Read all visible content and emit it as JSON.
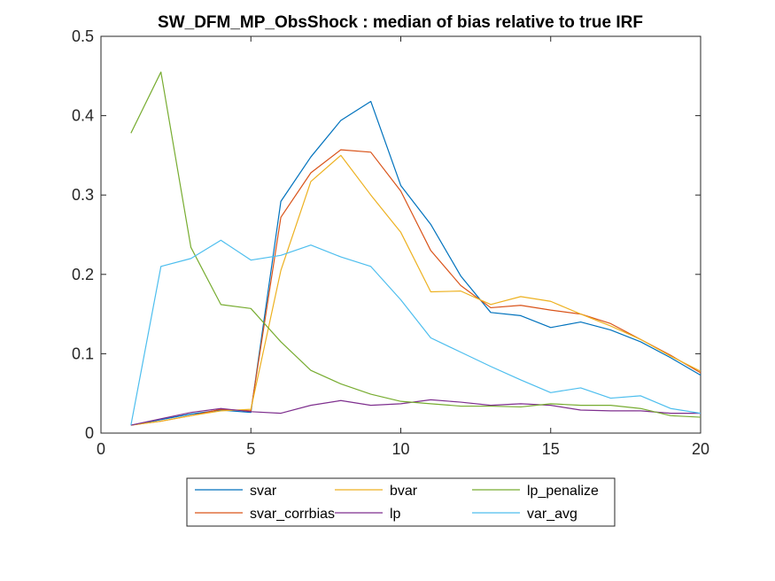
{
  "chart_data": {
    "type": "line",
    "title": "SW_DFM_MP_ObsShock : median of bias relative to true IRF",
    "xlabel": "",
    "ylabel": "",
    "xlim": [
      0,
      20
    ],
    "ylim": [
      0,
      0.5
    ],
    "xticks": [
      0,
      5,
      10,
      15,
      20
    ],
    "xtick_labels": [
      "0",
      "5",
      "10",
      "15",
      "20"
    ],
    "yticks": [
      0,
      0.1,
      0.2,
      0.3,
      0.4,
      0.5
    ],
    "ytick_labels": [
      "0",
      "0.1",
      "0.2",
      "0.3",
      "0.4",
      "0.5"
    ],
    "grid": false,
    "legend_position": "bottom-outside",
    "x": [
      1,
      2,
      3,
      4,
      5,
      6,
      7,
      8,
      9,
      10,
      11,
      12,
      13,
      14,
      15,
      16,
      17,
      18,
      19,
      20
    ],
    "series": [
      {
        "name": "svar",
        "color": "#0072BD",
        "values": [
          0.01,
          0.017,
          0.024,
          0.029,
          0.026,
          0.292,
          0.348,
          0.394,
          0.418,
          0.312,
          0.263,
          0.198,
          0.152,
          0.148,
          0.133,
          0.14,
          0.13,
          0.115,
          0.095,
          0.073
        ]
      },
      {
        "name": "svar_corrbias",
        "color": "#D95319",
        "values": [
          0.01,
          0.015,
          0.022,
          0.03,
          0.028,
          0.272,
          0.328,
          0.357,
          0.354,
          0.305,
          0.23,
          0.186,
          0.158,
          0.161,
          0.155,
          0.15,
          0.138,
          0.118,
          0.098,
          0.076
        ]
      },
      {
        "name": "bvar",
        "color": "#EDB120",
        "values": [
          0.01,
          0.015,
          0.022,
          0.028,
          0.03,
          0.205,
          0.317,
          0.35,
          0.3,
          0.253,
          0.178,
          0.179,
          0.162,
          0.172,
          0.166,
          0.15,
          0.135,
          0.118,
          0.097,
          0.078
        ]
      },
      {
        "name": "lp",
        "color": "#7E2F8E",
        "values": [
          0.01,
          0.018,
          0.026,
          0.031,
          0.027,
          0.025,
          0.035,
          0.041,
          0.035,
          0.037,
          0.042,
          0.039,
          0.035,
          0.037,
          0.035,
          0.029,
          0.028,
          0.028,
          0.025,
          0.025
        ]
      },
      {
        "name": "lp_penalize",
        "color": "#77AC30",
        "values": [
          0.378,
          0.455,
          0.234,
          0.162,
          0.157,
          0.115,
          0.079,
          0.062,
          0.049,
          0.04,
          0.037,
          0.034,
          0.034,
          0.033,
          0.037,
          0.035,
          0.035,
          0.031,
          0.022,
          0.02
        ]
      },
      {
        "name": "var_avg",
        "color": "#4DBEEE",
        "values": [
          0.01,
          0.21,
          0.22,
          0.243,
          0.218,
          0.224,
          0.237,
          0.222,
          0.21,
          0.168,
          0.12,
          0.102,
          0.084,
          0.067,
          0.051,
          0.057,
          0.044,
          0.047,
          0.031,
          0.025
        ]
      }
    ],
    "legend_order": [
      "svar",
      "bvar",
      "lp_penalize",
      "svar_corrbias",
      "lp",
      "var_avg"
    ]
  }
}
